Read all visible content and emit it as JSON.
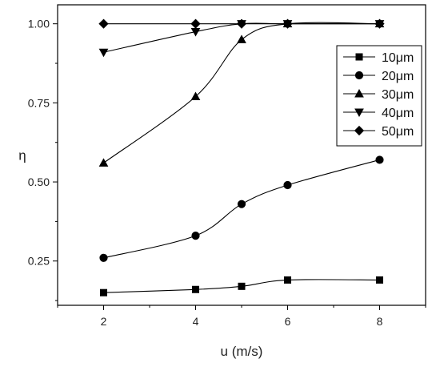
{
  "chart_data": {
    "type": "line",
    "xlabel": "u (m/s)",
    "ylabel": "η",
    "xlim": [
      1,
      9
    ],
    "ylim": [
      0.11,
      1.06
    ],
    "x_ticks": [
      2,
      4,
      6,
      8
    ],
    "y_ticks": [
      0.25,
      0.5,
      0.75,
      1.0
    ],
    "y_tick_labels": [
      "0.25",
      "0.50",
      "0.75",
      "1.00"
    ],
    "x": [
      2,
      4,
      5,
      6,
      8
    ],
    "grid": false,
    "legend_position": "top-right",
    "line_color": "#000000",
    "series": [
      {
        "name": "10μm",
        "marker": "square",
        "values": [
          0.15,
          0.16,
          0.17,
          0.19,
          0.19
        ]
      },
      {
        "name": "20μm",
        "marker": "circle",
        "values": [
          0.26,
          0.33,
          0.43,
          0.49,
          0.57
        ]
      },
      {
        "name": "30μm",
        "marker": "triangle-up",
        "values": [
          0.56,
          0.77,
          0.95,
          1.0,
          1.0
        ]
      },
      {
        "name": "40μm",
        "marker": "triangle-down",
        "values": [
          0.91,
          0.975,
          1.0,
          1.0,
          1.0
        ]
      },
      {
        "name": "50μm",
        "marker": "diamond",
        "values": [
          1.0,
          1.0,
          1.0,
          1.0,
          1.0
        ]
      }
    ]
  }
}
